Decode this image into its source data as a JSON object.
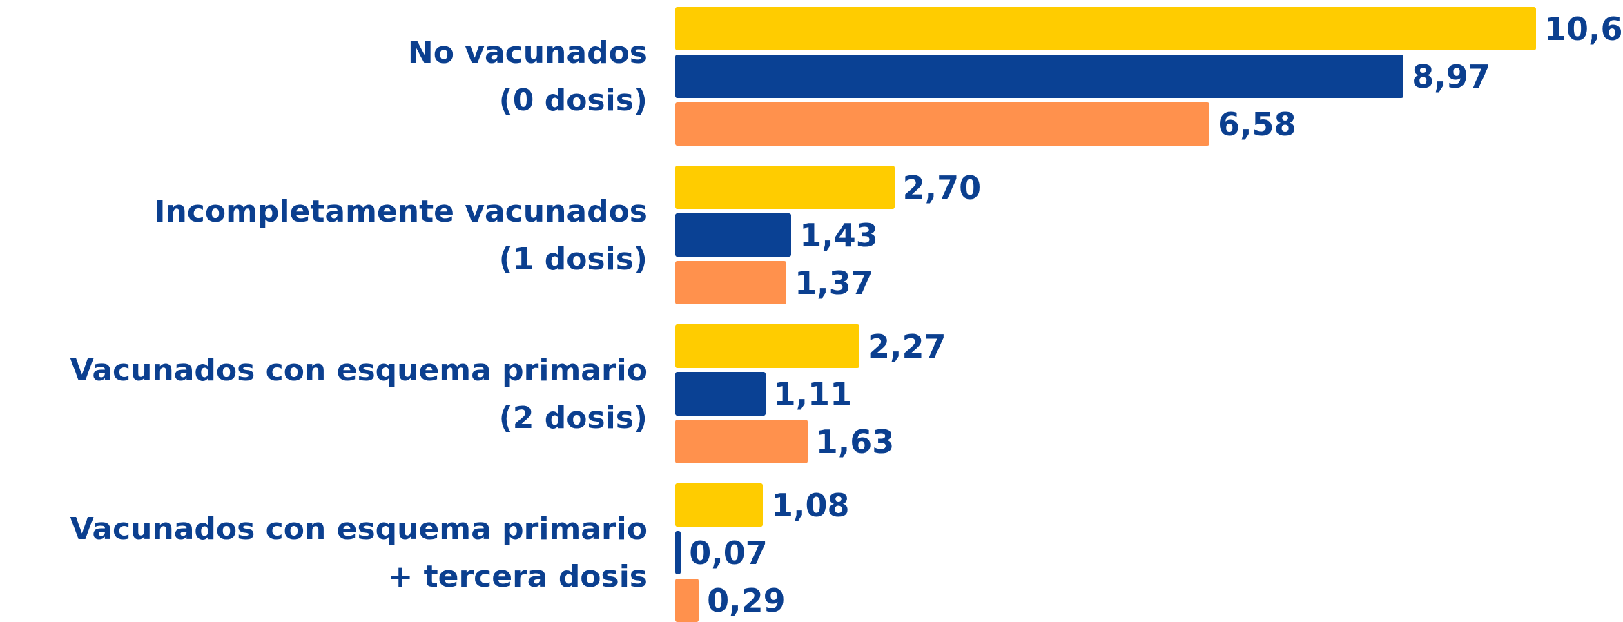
{
  "chart_data": {
    "type": "bar",
    "orientation": "horizontal",
    "categories": [
      "No vacunados\n(0 dosis)",
      "Incompletamente vacunados\n(1 dosis)",
      "Vacunados con esquema primario\n(2 dosis)",
      "Vacunados con esquema primario\n+ tercera dosis"
    ],
    "series": [
      {
        "color": "#ffcc00",
        "values": [
          10.6,
          2.7,
          2.27,
          1.08
        ],
        "value_labels": [
          "10,6",
          "2,70",
          "2,27",
          "1,08"
        ]
      },
      {
        "color": "#0a4194",
        "values": [
          8.97,
          1.43,
          1.11,
          0.07
        ],
        "value_labels": [
          "8,97",
          "1,43",
          "1,11",
          "0,07"
        ]
      },
      {
        "color": "#ff914d",
        "values": [
          6.58,
          1.37,
          1.63,
          0.29
        ],
        "value_labels": [
          "6,58",
          "1,37",
          "1,63",
          "0,29"
        ]
      }
    ],
    "xlim": [
      0,
      10.6
    ]
  }
}
